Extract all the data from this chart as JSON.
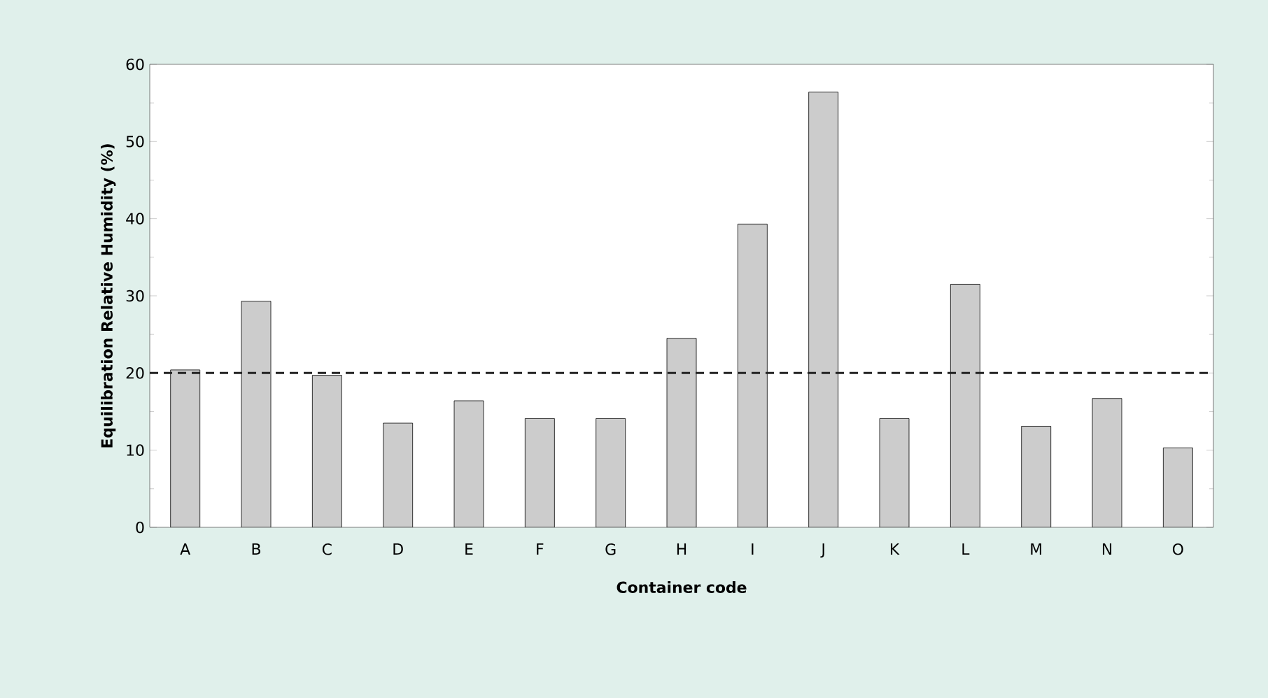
{
  "chart_data": {
    "type": "bar",
    "xlabel": "Container code",
    "ylabel": "Equilibration Relative Humidity (%)",
    "categories": [
      "A",
      "B",
      "C",
      "D",
      "E",
      "F",
      "G",
      "H",
      "I",
      "J",
      "K",
      "L",
      "M",
      "N",
      "O"
    ],
    "values": [
      20.4,
      29.3,
      19.7,
      13.5,
      16.4,
      14.1,
      14.1,
      24.5,
      39.3,
      56.4,
      14.1,
      31.5,
      13.1,
      16.7,
      10.3
    ],
    "color": "#cccccc",
    "ylim": [
      0,
      60
    ],
    "yticks": [
      0,
      10,
      20,
      30,
      40,
      50,
      60
    ],
    "ref_lines": [
      {
        "axis": "y",
        "value": 20,
        "line_style": "dashed",
        "color": "#222222"
      }
    ]
  }
}
